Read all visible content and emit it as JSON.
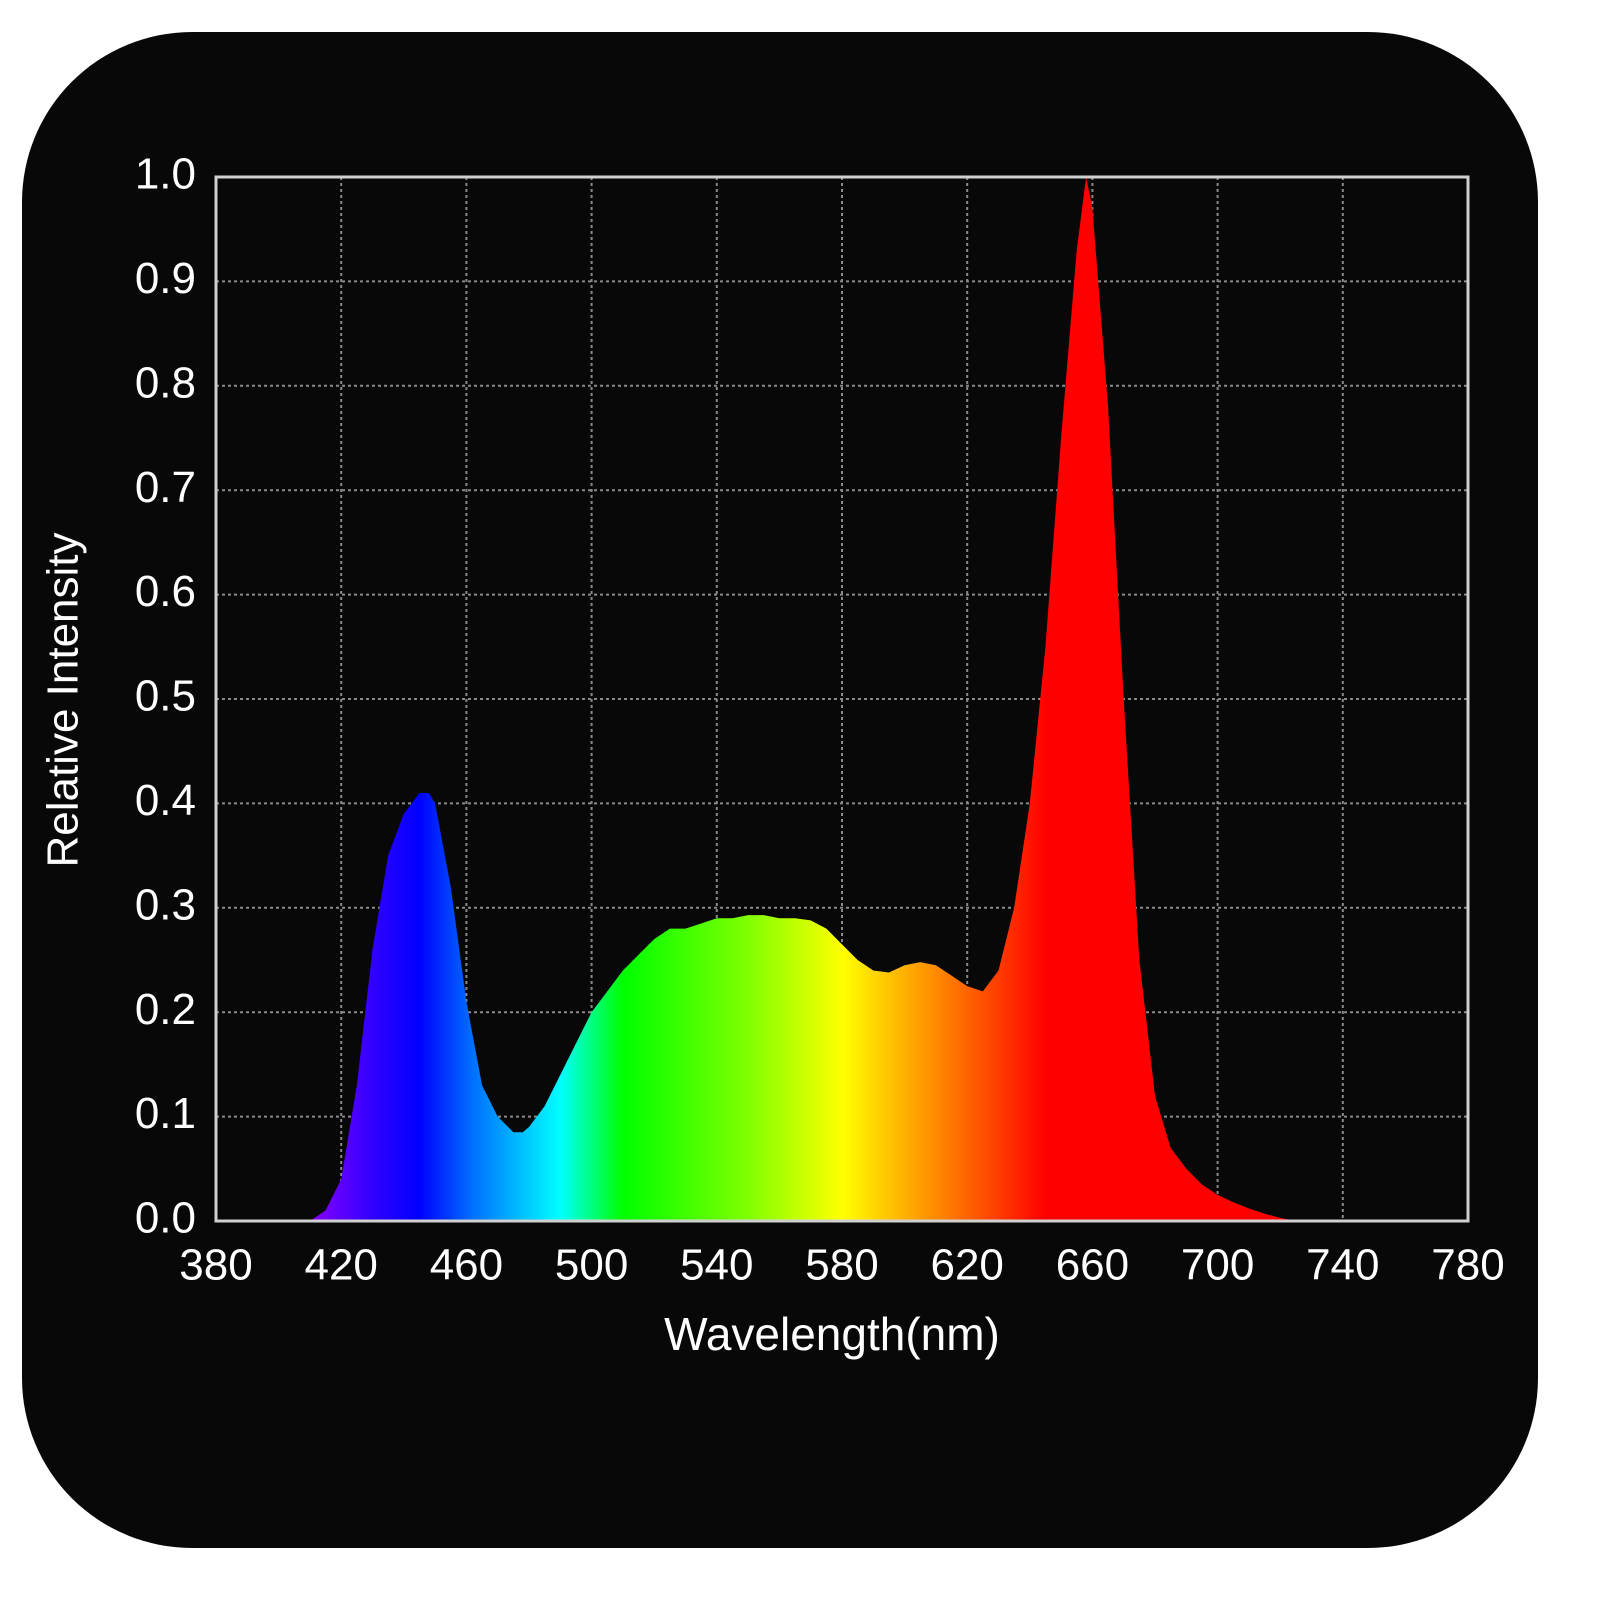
{
  "chart_data": {
    "type": "area",
    "x_label": "Wavelength(nm)",
    "y_label": "Relative Intensity",
    "x": [
      410,
      415,
      420,
      425,
      430,
      435,
      440,
      445,
      448,
      450,
      455,
      460,
      465,
      470,
      475,
      478,
      480,
      485,
      490,
      495,
      500,
      505,
      510,
      515,
      520,
      525,
      530,
      535,
      540,
      545,
      550,
      555,
      560,
      565,
      570,
      575,
      580,
      585,
      590,
      595,
      600,
      605,
      610,
      615,
      620,
      625,
      630,
      635,
      640,
      645,
      650,
      655,
      658,
      660,
      665,
      670,
      675,
      680,
      685,
      690,
      695,
      700,
      705,
      710,
      715,
      720,
      725
    ],
    "values": [
      0,
      0.01,
      0.04,
      0.13,
      0.26,
      0.35,
      0.39,
      0.41,
      0.41,
      0.4,
      0.32,
      0.21,
      0.13,
      0.1,
      0.085,
      0.085,
      0.09,
      0.11,
      0.14,
      0.17,
      0.2,
      0.22,
      0.24,
      0.255,
      0.27,
      0.28,
      0.28,
      0.285,
      0.29,
      0.29,
      0.293,
      0.293,
      0.29,
      0.29,
      0.288,
      0.28,
      0.265,
      0.25,
      0.24,
      0.238,
      0.245,
      0.248,
      0.245,
      0.235,
      0.225,
      0.22,
      0.24,
      0.3,
      0.4,
      0.55,
      0.75,
      0.93,
      1.0,
      0.97,
      0.78,
      0.5,
      0.25,
      0.12,
      0.07,
      0.05,
      0.035,
      0.025,
      0.018,
      0.012,
      0.007,
      0.003,
      0
    ],
    "gradient": [
      {
        "x": 410,
        "color": "#8a00ff"
      },
      {
        "x": 430,
        "color": "#3000ff"
      },
      {
        "x": 445,
        "color": "#0000ff"
      },
      {
        "x": 462,
        "color": "#0070ff"
      },
      {
        "x": 490,
        "color": "#00ffff"
      },
      {
        "x": 510,
        "color": "#00ff00"
      },
      {
        "x": 550,
        "color": "#80ff00"
      },
      {
        "x": 580,
        "color": "#ffff00"
      },
      {
        "x": 600,
        "color": "#ffb000"
      },
      {
        "x": 625,
        "color": "#ff5000"
      },
      {
        "x": 645,
        "color": "#ff0000"
      },
      {
        "x": 725,
        "color": "#ff0000"
      }
    ],
    "xlim": [
      380,
      780
    ],
    "xticks": [
      380,
      420,
      460,
      500,
      540,
      580,
      620,
      660,
      700,
      740,
      780
    ],
    "ylim": [
      0,
      1
    ],
    "yticks": [
      {
        "value": 0,
        "label": "0.0"
      },
      0.1,
      0.2,
      0.3,
      0.4,
      0.5,
      0.6,
      0.7,
      0.8,
      0.9,
      {
        "value": 1,
        "label": "1.0"
      }
    ],
    "grid": true
  }
}
